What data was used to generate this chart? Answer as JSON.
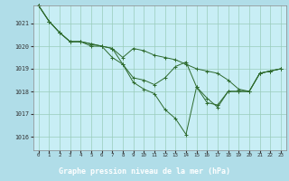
{
  "title": "Graphe pression niveau de la mer (hPa)",
  "bg_color": "#b0dde8",
  "plot_bg_color": "#c8eef5",
  "grid_color": "#99ccbb",
  "line_color": "#2d6a2d",
  "label_bg_color": "#2d6a2d",
  "label_text_color": "#ffffff",
  "xlim": [
    -0.5,
    23.5
  ],
  "ylim": [
    1015.4,
    1021.8
  ],
  "yticks": [
    1016,
    1017,
    1018,
    1019,
    1020,
    1021
  ],
  "xticks": [
    0,
    1,
    2,
    3,
    4,
    5,
    6,
    7,
    8,
    9,
    10,
    11,
    12,
    13,
    14,
    15,
    16,
    17,
    18,
    19,
    20,
    21,
    22,
    23
  ],
  "series": [
    [
      1021.8,
      1021.1,
      1020.6,
      1020.2,
      1020.2,
      1020.1,
      1020.0,
      1019.9,
      1019.5,
      1019.9,
      1019.8,
      1019.6,
      1019.5,
      1019.4,
      1019.2,
      1019.0,
      1018.9,
      1018.8,
      1018.5,
      1018.1,
      1018.0,
      1018.8,
      1018.9,
      1019.0
    ],
    [
      1021.8,
      1021.1,
      1020.6,
      1020.2,
      1020.2,
      1020.1,
      1020.0,
      1019.5,
      1019.2,
      1018.6,
      1018.5,
      1018.3,
      1018.6,
      1019.1,
      1019.3,
      1018.2,
      1017.7,
      1017.3,
      1018.0,
      1018.0,
      1018.0,
      1018.8,
      1018.9,
      1019.0
    ],
    [
      1021.8,
      1021.1,
      1020.6,
      1020.2,
      1020.2,
      1020.0,
      1020.0,
      1019.9,
      1019.2,
      1018.4,
      1018.1,
      1017.9,
      1017.2,
      1016.8,
      1016.1,
      1018.2,
      1017.5,
      1017.4,
      1018.0,
      1018.0,
      1018.0,
      1018.8,
      1018.9,
      1019.0
    ]
  ]
}
